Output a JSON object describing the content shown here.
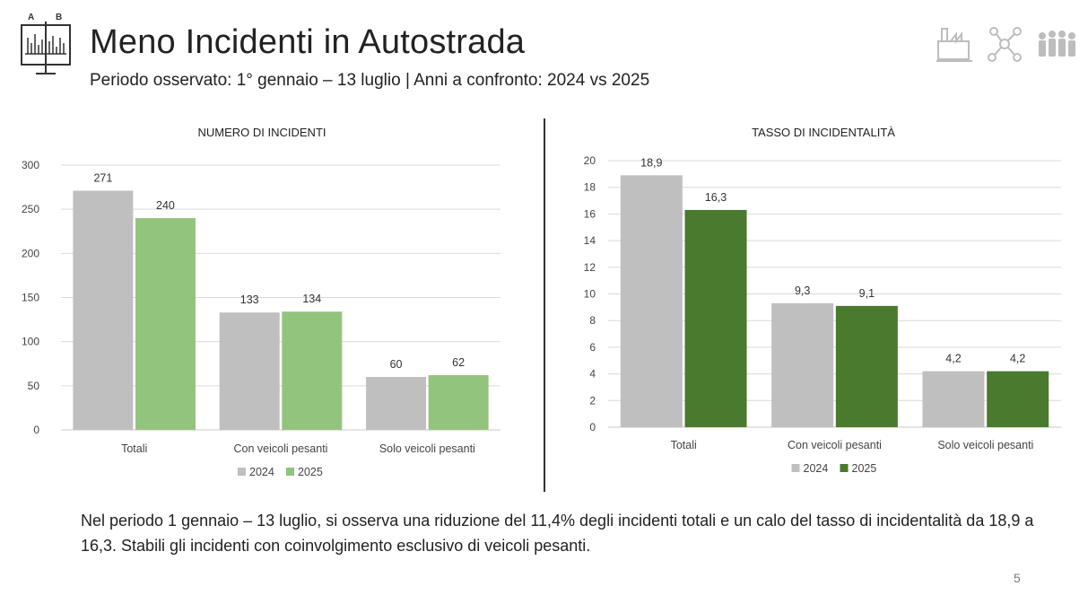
{
  "slide": {
    "title": "Meno Incidenti in Autostrada",
    "subtitle": "Periodo osservato: 1° gennaio – 13 luglio | Anni a confronto: 2024 vs 2025",
    "note": "Nel periodo 1 gennaio – 13 luglio, si osserva una riduzione del 11,4% degli incidenti totali e un calo del tasso di incidentalità da 18,9 a 16,3. Stabili gli incidenti con coinvolgimento esclusivo di veicoli pesanti.",
    "page_number": "5",
    "logo": {
      "icon": "chart-board-icon",
      "letter_a": "A",
      "letter_b": "B"
    },
    "top_icons": [
      "factory-icon",
      "network-icon",
      "people-icon"
    ]
  },
  "chart_data": [
    {
      "type": "bar",
      "title": "NUMERO DI INCIDENTI",
      "categories": [
        "Totali",
        "Con veicoli pesanti",
        "Solo veicoli pesanti"
      ],
      "series": [
        {
          "name": "2024",
          "values": [
            271,
            133,
            60
          ],
          "labels": [
            "271",
            "133",
            "60"
          ],
          "color": "#bfbfbf"
        },
        {
          "name": "2025",
          "values": [
            240,
            134,
            62
          ],
          "labels": [
            "240",
            "134",
            "62"
          ],
          "color": "#93c47d"
        }
      ],
      "ylim": [
        0,
        300
      ],
      "yticks": [
        0,
        50,
        100,
        150,
        200,
        250,
        300
      ],
      "ytick_labels": [
        "0",
        "50",
        "100",
        "150",
        "200",
        "250",
        "300"
      ],
      "grid": true,
      "legend": "bottom"
    },
    {
      "type": "bar",
      "title": "TASSO DI INCIDENTALITÀ",
      "categories": [
        "Totali",
        "Con veicoli pesanti",
        "Solo veicoli pesanti"
      ],
      "series": [
        {
          "name": "2024",
          "values": [
            18.9,
            9.3,
            4.2
          ],
          "labels": [
            "18,9",
            "9,3",
            "4,2"
          ],
          "color": "#bfbfbf"
        },
        {
          "name": "2025",
          "values": [
            16.3,
            9.1,
            4.2
          ],
          "labels": [
            "16,3",
            "9,1",
            "4,2"
          ],
          "color": "#4a7a2e"
        }
      ],
      "ylim": [
        0,
        20
      ],
      "yticks": [
        0,
        2,
        4,
        6,
        8,
        10,
        12,
        14,
        16,
        18,
        20
      ],
      "ytick_labels": [
        "0",
        "2",
        "4",
        "6",
        "8",
        "10",
        "12",
        "14",
        "16",
        "18",
        "20"
      ],
      "grid": true,
      "legend": "bottom"
    }
  ]
}
